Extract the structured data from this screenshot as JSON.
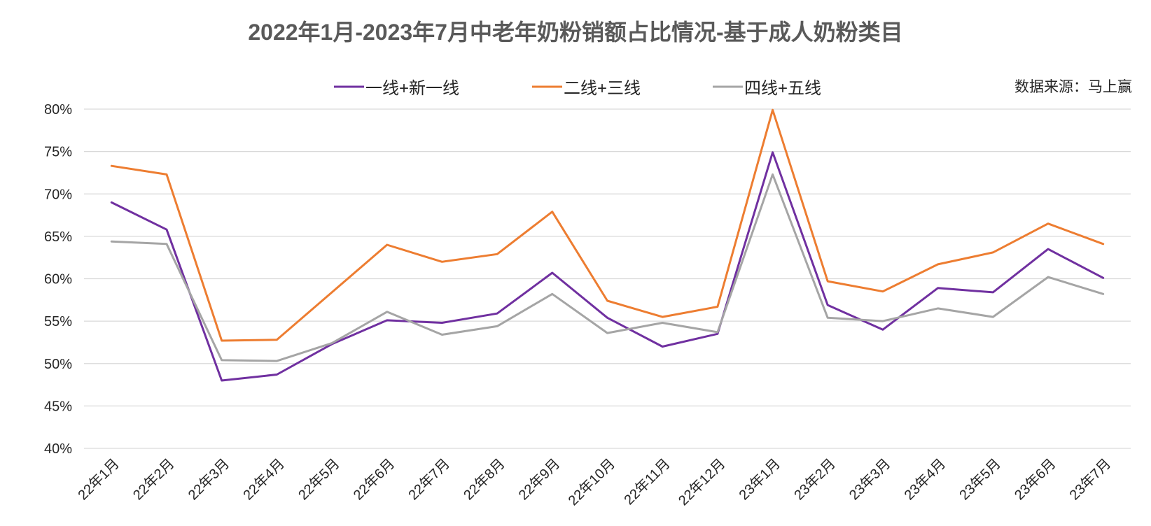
{
  "chart_data": {
    "type": "line",
    "title": "2022年1月-2023年7月中老年奶粉销额占比情况-基于成人奶粉类目",
    "source_note": "数据来源：马上赢",
    "xlabel": "",
    "ylabel": "",
    "ylim": [
      0.4,
      0.8
    ],
    "y_ticks": [
      "40%",
      "45%",
      "50%",
      "55%",
      "60%",
      "65%",
      "70%",
      "75%",
      "80%"
    ],
    "grid": true,
    "legend_position": "top-center",
    "categories": [
      "22年1月",
      "22年2月",
      "22年3月",
      "22年4月",
      "22年5月",
      "22年6月",
      "22年7月",
      "22年8月",
      "22年9月",
      "22年10月",
      "22年11月",
      "22年12月",
      "23年1月",
      "23年2月",
      "23年3月",
      "23年4月",
      "23年5月",
      "23年6月",
      "23年7月"
    ],
    "series": [
      {
        "name": "一线+新一线",
        "color": "#7030a0",
        "values": [
          0.69,
          0.658,
          0.48,
          0.487,
          0.523,
          0.551,
          0.548,
          0.559,
          0.607,
          0.554,
          0.52,
          0.535,
          0.749,
          0.569,
          0.54,
          0.589,
          0.584,
          0.635,
          0.601
        ]
      },
      {
        "name": "二线+三线",
        "color": "#ed7d31",
        "values": [
          0.733,
          0.723,
          0.527,
          0.528,
          0.584,
          0.64,
          0.62,
          0.629,
          0.679,
          0.574,
          0.555,
          0.567,
          0.799,
          0.597,
          0.585,
          0.617,
          0.631,
          0.665,
          0.641
        ]
      },
      {
        "name": "四线+五线",
        "color": "#a5a5a5",
        "values": [
          0.644,
          0.641,
          0.504,
          0.503,
          0.524,
          0.561,
          0.534,
          0.544,
          0.582,
          0.536,
          0.548,
          0.537,
          0.723,
          0.554,
          0.55,
          0.565,
          0.555,
          0.602,
          0.582
        ]
      }
    ]
  }
}
